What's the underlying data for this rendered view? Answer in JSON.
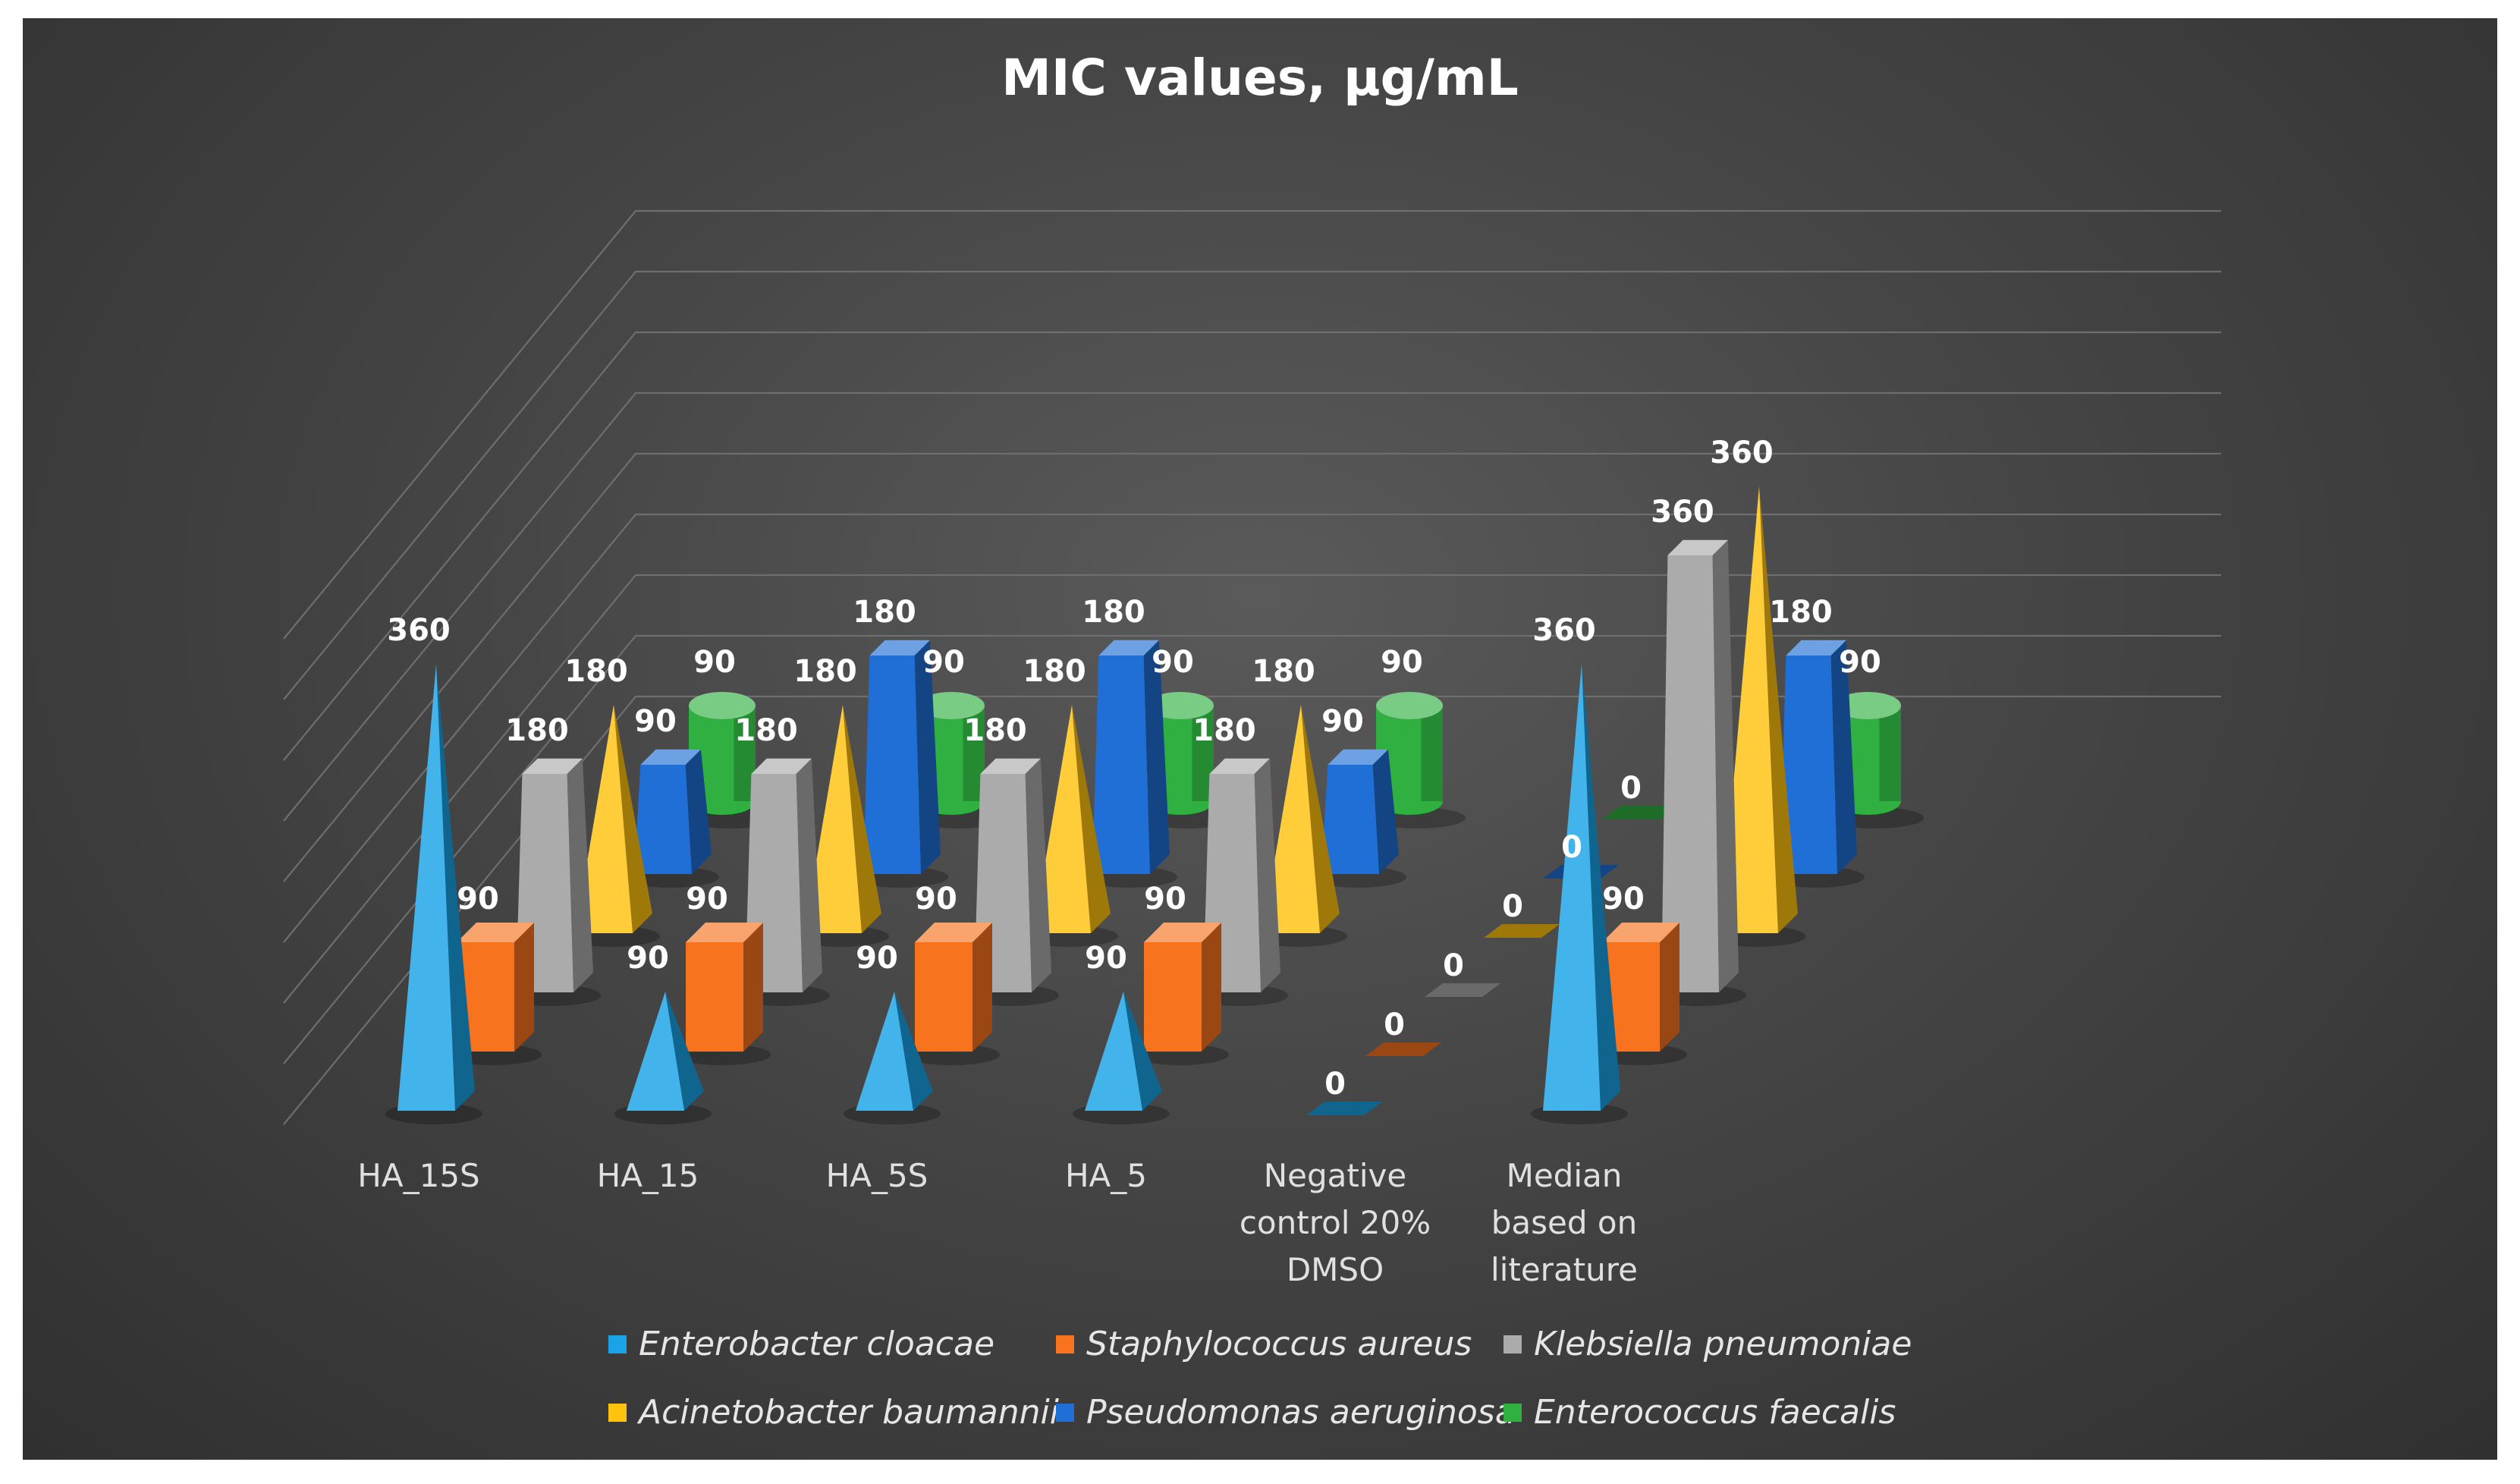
{
  "chart_data": {
    "type": "bar",
    "subtype": "3d-clustered-series",
    "title": "MIC values, µg/mL",
    "categories": [
      "HA_15S",
      "HA_15",
      "HA_5S",
      "HA_5",
      "Negative control 20% DMSO",
      "Median based on literature"
    ],
    "category_lines": [
      [
        "HA_15S"
      ],
      [
        "HA_15"
      ],
      [
        "HA_5S"
      ],
      [
        "HA_5"
      ],
      [
        "Negative",
        "control 20%",
        "DMSO"
      ],
      [
        "Median",
        "based on",
        "literature"
      ]
    ],
    "series": [
      {
        "name": "Enterobacter cloacae",
        "shape": "pyramid",
        "values": [
          360,
          90,
          90,
          90,
          0,
          360
        ]
      },
      {
        "name": "Staphylococcus aureus",
        "shape": "box",
        "values": [
          90,
          90,
          90,
          90,
          0,
          90
        ]
      },
      {
        "name": "Klebsiella pneumoniae",
        "shape": "frustum",
        "values": [
          180,
          180,
          180,
          180,
          0,
          360
        ]
      },
      {
        "name": "Acinetobacter baumannii",
        "shape": "pyramid",
        "values": [
          180,
          180,
          180,
          180,
          0,
          360
        ]
      },
      {
        "name": "Pseudomonas aeruginosa",
        "shape": "frustum",
        "values": [
          90,
          180,
          180,
          90,
          0,
          180
        ]
      },
      {
        "name": "Enterococcus faecalis",
        "shape": "cylinder",
        "values": [
          90,
          90,
          90,
          90,
          0,
          90
        ]
      }
    ],
    "ylim": [
      0,
      400
    ],
    "gridlines": 9,
    "xlabel": "",
    "ylabel": "",
    "legend_position": "bottom",
    "colors": {
      "Enterobacter cloacae": "#1AA3E6",
      "Staphylococcus aureus": "#F8731E",
      "Klebsiella pneumoniae": "#ABABAB",
      "Acinetobacter baumannii": "#FFC20E",
      "Pseudomonas aeruginosa": "#1F6FD6",
      "Enterococcus faecalis": "#2FB040"
    }
  }
}
